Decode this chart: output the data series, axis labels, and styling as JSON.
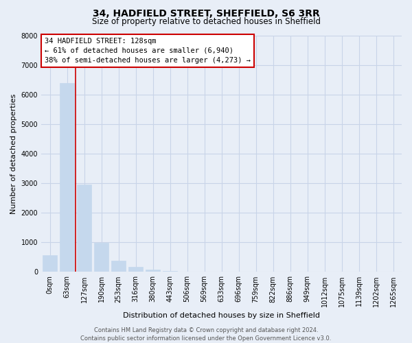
{
  "title": "34, HADFIELD STREET, SHEFFIELD, S6 3RR",
  "subtitle": "Size of property relative to detached houses in Sheffield",
  "xlabel": "Distribution of detached houses by size in Sheffield",
  "ylabel": "Number of detached properties",
  "bar_labels": [
    "0sqm",
    "63sqm",
    "127sqm",
    "190sqm",
    "253sqm",
    "316sqm",
    "380sqm",
    "443sqm",
    "506sqm",
    "569sqm",
    "633sqm",
    "696sqm",
    "759sqm",
    "822sqm",
    "886sqm",
    "949sqm",
    "1012sqm",
    "1075sqm",
    "1139sqm",
    "1202sqm",
    "1265sqm"
  ],
  "bar_values": [
    560,
    6380,
    2950,
    990,
    380,
    165,
    75,
    30,
    0,
    0,
    0,
    0,
    0,
    0,
    0,
    0,
    0,
    0,
    0,
    0,
    0
  ],
  "bar_color": "#c5d8ed",
  "vline_color": "#cc0000",
  "vline_index": 2,
  "ylim": [
    0,
    8000
  ],
  "yticks": [
    0,
    1000,
    2000,
    3000,
    4000,
    5000,
    6000,
    7000,
    8000
  ],
  "annotation_title": "34 HADFIELD STREET: 128sqm",
  "annotation_line1": "← 61% of detached houses are smaller (6,940)",
  "annotation_line2": "38% of semi-detached houses are larger (4,273) →",
  "annotation_box_facecolor": "#ffffff",
  "annotation_box_edgecolor": "#cc0000",
  "footer1": "Contains HM Land Registry data © Crown copyright and database right 2024.",
  "footer2": "Contains public sector information licensed under the Open Government Licence v3.0.",
  "bg_color": "#e8eef7",
  "plot_bg_color": "#e8eef7",
  "grid_color": "#c8d4e8",
  "title_fontsize": 10,
  "subtitle_fontsize": 8.5,
  "ylabel_fontsize": 8,
  "xlabel_fontsize": 8,
  "tick_fontsize": 7,
  "annotation_fontsize": 7.5,
  "footer_fontsize": 6
}
